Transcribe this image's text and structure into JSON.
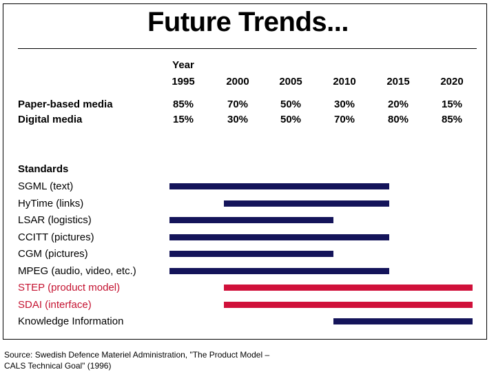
{
  "title": "Future Trends...",
  "table": {
    "year_label": "Year",
    "years": [
      "1995",
      "2000",
      "2005",
      "2010",
      "2015",
      "2020"
    ],
    "rows": [
      {
        "label": "Paper-based media",
        "values": [
          "85%",
          "70%",
          "50%",
          "30%",
          "20%",
          "15%"
        ]
      },
      {
        "label": "Digital media",
        "values": [
          "15%",
          "30%",
          "50%",
          "70%",
          "80%",
          "85%"
        ]
      }
    ]
  },
  "standards": {
    "heading": "Standards",
    "items": [
      {
        "label": "SGML (text)",
        "start": 1995,
        "end": 2015,
        "color": "#14145a",
        "highlight": false
      },
      {
        "label": "HyTime (links)",
        "start": 2000,
        "end": 2015,
        "color": "#14145a",
        "highlight": false
      },
      {
        "label": "LSAR (logistics)",
        "start": 1995,
        "end": 2010,
        "color": "#14145a",
        "highlight": false
      },
      {
        "label": "CCITT (pictures)",
        "start": 1995,
        "end": 2015,
        "color": "#14145a",
        "highlight": false
      },
      {
        "label": "CGM (pictures)",
        "start": 1995,
        "end": 2010,
        "color": "#14145a",
        "highlight": false
      },
      {
        "label": "MPEG (audio, video, etc.)",
        "start": 1995,
        "end": 2015,
        "color": "#14145a",
        "highlight": false
      },
      {
        "label": "STEP (product model)",
        "start": 2000,
        "end": 2020,
        "color": "#d0103a",
        "highlight": true
      },
      {
        "label": "SDAI (interface)",
        "start": 2000,
        "end": 2020,
        "color": "#d0103a",
        "highlight": true
      },
      {
        "label": "Knowledge Information",
        "start": 2010,
        "end": 2020,
        "color": "#14145a",
        "highlight": false
      }
    ]
  },
  "source": {
    "line1": "Source: Swedish Defence Materiel Administration, \"The Product Model –",
    "line2": "CALS Technical Goal\" (1996)"
  }
}
